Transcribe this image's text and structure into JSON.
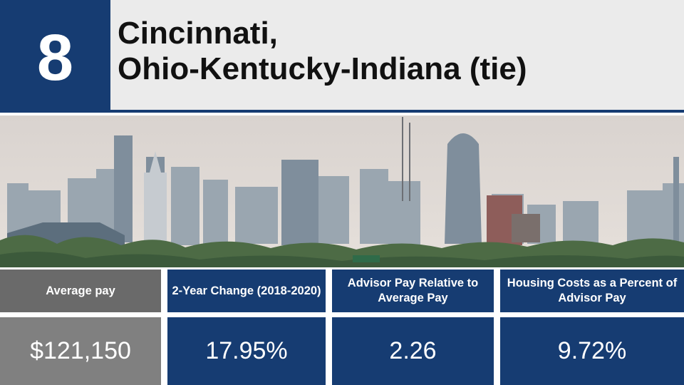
{
  "rank": "8",
  "title_lines": [
    "Cincinnati,",
    "Ohio-Kentucky-Indiana (tie)"
  ],
  "photo": {
    "subject": "city-skyline",
    "accent": "#163c72"
  },
  "stats": [
    {
      "header": "Average pay",
      "value": "$121,150"
    },
    {
      "header": "2-Year Change (2018-2020)",
      "value": "17.95%"
    },
    {
      "header": "Advisor Pay Relative to Average Pay",
      "value": "2.26"
    },
    {
      "header": "Housing Costs as a Percent of Advisor Pay",
      "value": "9.72%"
    }
  ],
  "colors": {
    "navy": "#163c72",
    "grey_header": "#6a6a6a",
    "grey_value": "#808080",
    "title_bg": "#ebebeb"
  }
}
